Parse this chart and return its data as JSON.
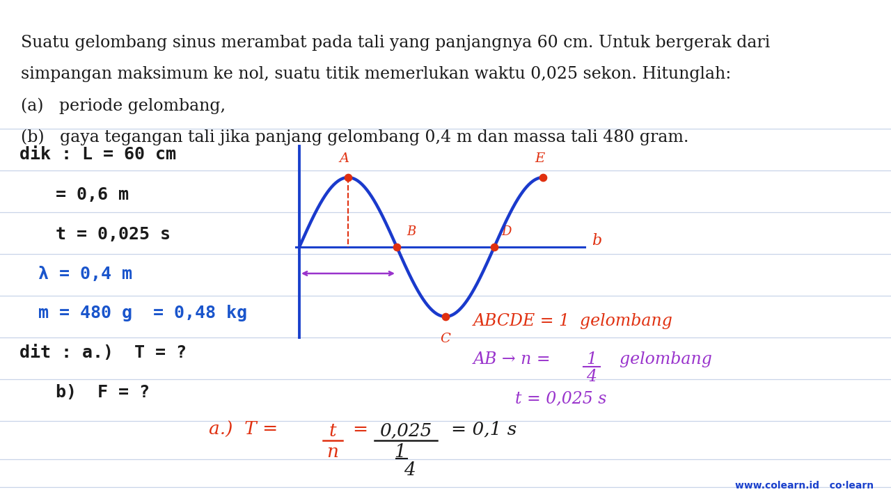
{
  "bg_color": "#ffffff",
  "line_color_h": "#c8d4e8",
  "text_color_dark": "#1a1a1a",
  "red_color": "#e03010",
  "blue_color": "#1a40cc",
  "blue_text": "#1a55cc",
  "purple_color": "#9933cc",
  "wave_color": "#1a3acc",
  "wave_lw": 3.2,
  "title_line1": "Suatu gelombang sinus merambat pada tali yang panjangnya 60 cm. Untuk bergerak dari",
  "title_line2": "simpangan maksimum ke nol, suatu titik memerlukan waktu 0,025 sekon. Hitunglah:",
  "subtitle_a": "(a)   periode gelombang,",
  "subtitle_b": "(b)   gaya tegangan tali jika panjang gelombang 0,4 m dan massa tali 480 gram.",
  "fig_width": 12.8,
  "fig_height": 7.2,
  "dpi": 100
}
